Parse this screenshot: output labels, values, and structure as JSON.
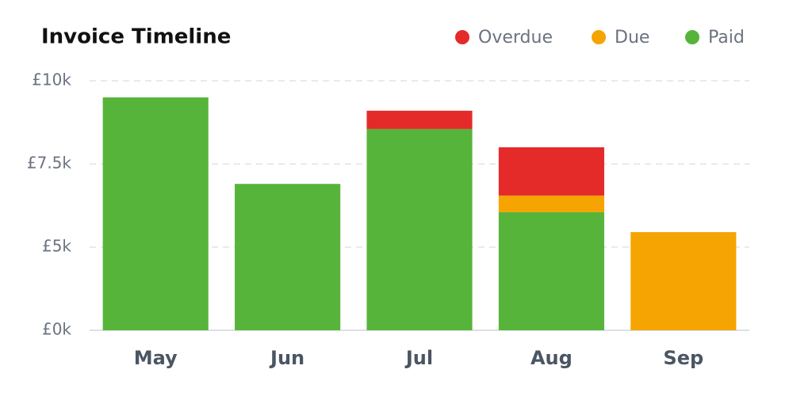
{
  "chart_data": {
    "type": "stacked-bar",
    "title": "Invoice Timeline",
    "categories": [
      "May",
      "Jun",
      "Jul",
      "Aug",
      "Sep"
    ],
    "series": [
      {
        "name": "Overdue",
        "color": "#e52a2a",
        "values": [
          0,
          0,
          550,
          1450,
          0
        ]
      },
      {
        "name": "Due",
        "color": "#f5a401",
        "values": [
          0,
          0,
          0,
          500,
          5450
        ]
      },
      {
        "name": "Paid",
        "color": "#57b43a",
        "values": [
          9500,
          6900,
          8550,
          6050,
          0
        ]
      }
    ],
    "ylim": [
      0,
      10000
    ],
    "yticks": [
      {
        "value": 0,
        "label": "£0k"
      },
      {
        "value": 5000,
        "label": "£5k"
      },
      {
        "value": 7500,
        "label": "£7.5k"
      },
      {
        "value": 10000,
        "label": "£10k"
      }
    ],
    "grid": true
  }
}
